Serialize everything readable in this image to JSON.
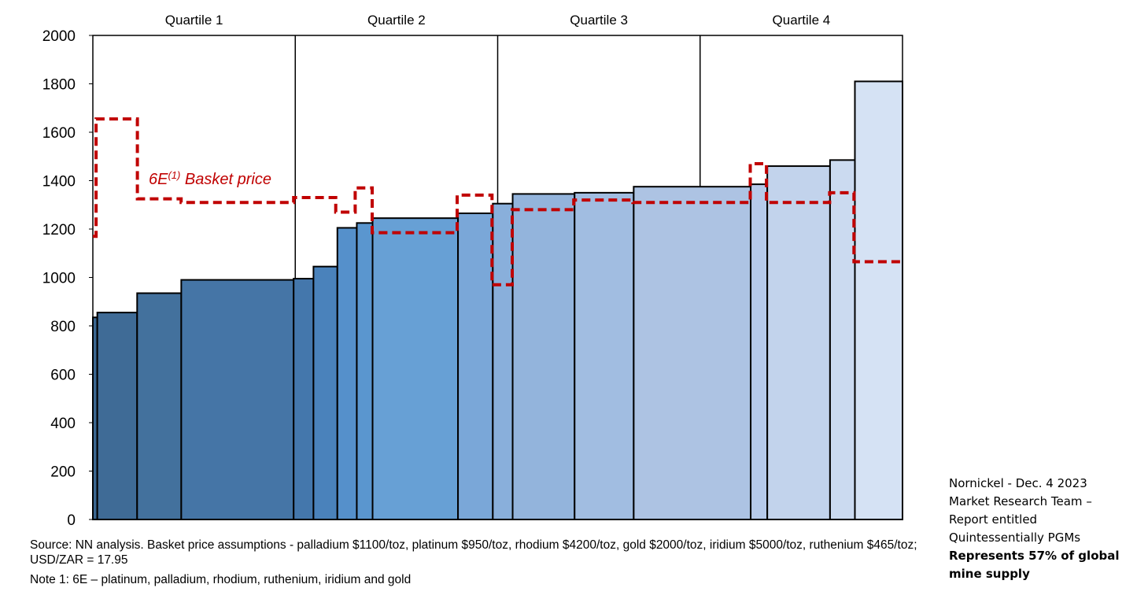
{
  "chart_data": {
    "type": "bar",
    "subtype": "cost-curve",
    "ylim": [
      0,
      2000
    ],
    "yticks": [
      0,
      200,
      400,
      600,
      800,
      1000,
      1200,
      1400,
      1600,
      1800,
      2000
    ],
    "quartiles": [
      "Quartile 1",
      "Quartile 2",
      "Quartile 3",
      "Quartile 4"
    ],
    "bars": [
      {
        "x0": 0.0,
        "x1": 0.55,
        "value": 835
      },
      {
        "x0": 0.55,
        "x1": 5.47,
        "value": 855
      },
      {
        "x0": 5.47,
        "x1": 10.92,
        "value": 935
      },
      {
        "x0": 10.92,
        "x1": 24.8,
        "value": 990
      },
      {
        "x0": 24.8,
        "x1": 27.25,
        "value": 995
      },
      {
        "x0": 27.25,
        "x1": 30.2,
        "value": 1045
      },
      {
        "x0": 30.2,
        "x1": 32.6,
        "value": 1205
      },
      {
        "x0": 32.6,
        "x1": 34.55,
        "value": 1225
      },
      {
        "x0": 34.55,
        "x1": 45.1,
        "value": 1245
      },
      {
        "x0": 45.1,
        "x1": 49.4,
        "value": 1265
      },
      {
        "x0": 49.4,
        "x1": 51.85,
        "value": 1305
      },
      {
        "x0": 51.85,
        "x1": 59.5,
        "value": 1345
      },
      {
        "x0": 59.5,
        "x1": 66.8,
        "value": 1350
      },
      {
        "x0": 66.8,
        "x1": 81.25,
        "value": 1375
      },
      {
        "x0": 81.25,
        "x1": 83.3,
        "value": 1385
      },
      {
        "x0": 83.3,
        "x1": 91.05,
        "value": 1460
      },
      {
        "x0": 91.05,
        "x1": 94.12,
        "value": 1485
      },
      {
        "x0": 94.12,
        "x1": 100.0,
        "value": 1810
      }
    ],
    "series": [
      {
        "name": "6E(1) Basket price",
        "type": "step",
        "points": [
          [
            0.0,
            1170
          ],
          [
            0.4,
            1170
          ],
          [
            0.4,
            1655
          ],
          [
            5.5,
            1655
          ],
          [
            5.5,
            1325
          ],
          [
            10.9,
            1325
          ],
          [
            10.9,
            1310
          ],
          [
            24.8,
            1310
          ],
          [
            24.8,
            1330
          ],
          [
            30.0,
            1330
          ],
          [
            30.0,
            1270
          ],
          [
            32.4,
            1270
          ],
          [
            32.4,
            1370
          ],
          [
            34.5,
            1370
          ],
          [
            34.5,
            1185
          ],
          [
            45.0,
            1185
          ],
          [
            45.0,
            1340
          ],
          [
            49.3,
            1340
          ],
          [
            49.3,
            970
          ],
          [
            51.8,
            970
          ],
          [
            51.8,
            1280
          ],
          [
            59.4,
            1280
          ],
          [
            59.4,
            1320
          ],
          [
            66.7,
            1320
          ],
          [
            66.7,
            1310
          ],
          [
            81.2,
            1310
          ],
          [
            81.2,
            1470
          ],
          [
            83.2,
            1470
          ],
          [
            83.2,
            1310
          ],
          [
            91.0,
            1310
          ],
          [
            91.0,
            1350
          ],
          [
            94.0,
            1350
          ],
          [
            94.0,
            1065
          ],
          [
            100.0,
            1065
          ]
        ]
      }
    ],
    "annotation": {
      "main": "6E",
      "sup": "(1)",
      "rest": " Basket price"
    },
    "colors": {
      "bars": [
        "#3b6690",
        "#3f6b96",
        "#43719d",
        "#4575a6",
        "#4477ac",
        "#4a82bb",
        "#5590cb",
        "#5a96cf",
        "#67a0d5",
        "#7aa7d8",
        "#89afdb",
        "#93b4dc",
        "#a1bde1",
        "#adc3e3",
        "#b6caea",
        "#c2d3ec",
        "#cbdaf0",
        "#d5e2f4"
      ],
      "basket": "#c00000"
    },
    "notes": {
      "source": "Source: NN analysis. Basket price assumptions - palladium $1100/toz, platinum $950/toz, rhodium $4200/toz, gold $2000/toz, iridium $5000/toz, ruthenium $465/toz; USD/ZAR = 17.95",
      "note1": "Note 1: 6E – platinum, palladium, rhodium, ruthenium, iridium and gold"
    }
  },
  "credit": {
    "line1": "Nornickel - Dec. 4 2023",
    "line2": "Market Research Team –",
    "line3": "Report entitled",
    "line4": "Quintessentially PGMs",
    "line5": "Represents 57% of global mine supply"
  }
}
